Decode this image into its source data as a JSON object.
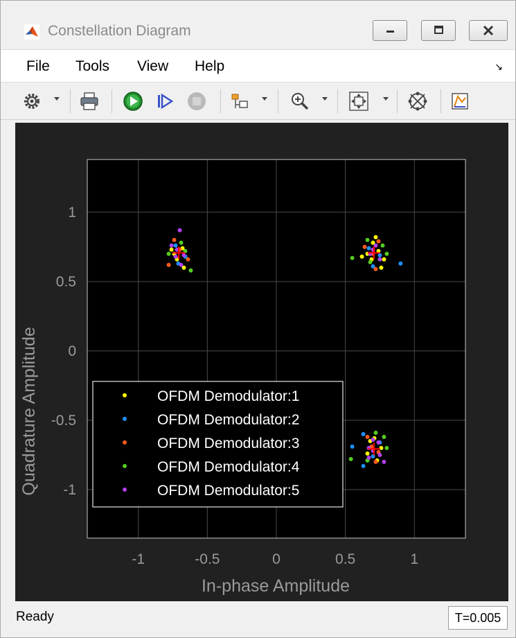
{
  "window": {
    "title": "Constellation Diagram"
  },
  "menu": [
    "File",
    "Tools",
    "View",
    "Help"
  ],
  "toolbar_icons": [
    "gear-icon",
    "print-icon",
    "run-icon",
    "step-forward-icon",
    "stop-icon",
    "signal-selector-icon",
    "zoom-icon",
    "autoscale-icon",
    "reference-constellation-icon",
    "measurements-icon"
  ],
  "status": {
    "text": "Ready",
    "time": "T=0.005"
  },
  "colors": {
    "plot_background": "#212121",
    "axes_background": "#000000",
    "reference_marker": "#ff0000",
    "series": [
      "#ffff00",
      "#1e90ff",
      "#ff5a1f",
      "#55cc22",
      "#b040f0"
    ]
  },
  "chart_data": {
    "type": "scatter",
    "title": "",
    "xlabel": "In-phase Amplitude",
    "ylabel": "Quadrature Amplitude",
    "xlim": [
      -1.37,
      1.37
    ],
    "ylim": [
      -1.35,
      1.38
    ],
    "x_ticks": [
      "-1",
      "-0.5",
      "0",
      "0.5",
      "1"
    ],
    "x_tick_values": [
      -1,
      -0.5,
      0,
      0.5,
      1
    ],
    "y_ticks": [
      "1",
      "0.5",
      "0",
      "-0.5",
      "-1"
    ],
    "y_tick_values": [
      1,
      0.5,
      0,
      -0.5,
      -1
    ],
    "grid": true,
    "legend_position": "bottom-left",
    "reference_points": [
      [
        -0.707,
        0.707
      ],
      [
        0.707,
        0.707
      ],
      [
        0.707,
        -0.707
      ]
    ],
    "series": [
      {
        "name": "OFDM Demodulator:1",
        "points": [
          [
            -0.74,
            0.7
          ],
          [
            -0.68,
            0.74
          ],
          [
            -0.72,
            0.66
          ],
          [
            -0.67,
            0.6
          ],
          [
            -0.76,
            0.73
          ],
          [
            0.7,
            0.78
          ],
          [
            0.74,
            0.72
          ],
          [
            0.66,
            0.7
          ],
          [
            0.78,
            0.66
          ],
          [
            0.72,
            0.82
          ],
          [
            0.62,
            0.68
          ],
          [
            0.76,
            0.6
          ],
          [
            0.69,
            0.66
          ],
          [
            0.71,
            -0.63
          ],
          [
            0.76,
            -0.7
          ],
          [
            0.66,
            -0.74
          ],
          [
            0.73,
            -0.79
          ],
          [
            0.68,
            -0.65
          ]
        ]
      },
      {
        "name": "OFDM Demodulator:2",
        "points": [
          [
            -0.71,
            0.63
          ],
          [
            -0.66,
            0.68
          ],
          [
            -0.73,
            0.76
          ],
          [
            0.9,
            0.63
          ],
          [
            0.67,
            0.74
          ],
          [
            0.75,
            0.69
          ],
          [
            0.7,
            0.61
          ],
          [
            0.63,
            -0.6
          ],
          [
            0.55,
            -0.69
          ],
          [
            0.63,
            -0.83
          ],
          [
            0.75,
            -0.66
          ],
          [
            0.7,
            -0.76
          ]
        ]
      },
      {
        "name": "OFDM Demodulator:3",
        "points": [
          [
            -0.74,
            0.8
          ],
          [
            -0.7,
            0.73
          ],
          [
            -0.64,
            0.66
          ],
          [
            -0.78,
            0.62
          ],
          [
            0.7,
            0.7
          ],
          [
            0.74,
            0.79
          ],
          [
            0.72,
            0.59
          ],
          [
            0.64,
            0.75
          ],
          [
            0.69,
            -0.69
          ],
          [
            0.74,
            -0.73
          ],
          [
            0.66,
            -0.62
          ],
          [
            0.72,
            -0.8
          ]
        ]
      },
      {
        "name": "OFDM Demodulator:4",
        "points": [
          [
            -0.62,
            0.58
          ],
          [
            -0.78,
            0.7
          ],
          [
            -0.69,
            0.78
          ],
          [
            -0.66,
            0.72
          ],
          [
            0.55,
            0.67
          ],
          [
            0.8,
            0.7
          ],
          [
            0.68,
            0.64
          ],
          [
            0.77,
            0.76
          ],
          [
            0.66,
            0.8
          ],
          [
            0.54,
            -0.78
          ],
          [
            0.78,
            -0.62
          ],
          [
            0.72,
            -0.59
          ],
          [
            0.66,
            -0.79
          ],
          [
            0.8,
            -0.7
          ]
        ]
      },
      {
        "name": "OFDM Demodulator:5",
        "points": [
          [
            -0.7,
            0.87
          ],
          [
            -0.72,
            0.73
          ],
          [
            -0.67,
            0.69
          ],
          [
            -0.76,
            0.76
          ],
          [
            -0.73,
            0.68
          ],
          [
            -0.69,
            0.62
          ],
          [
            0.72,
            0.76
          ],
          [
            0.68,
            0.7
          ],
          [
            0.75,
            0.66
          ],
          [
            0.7,
            0.73
          ],
          [
            0.7,
            -0.72
          ],
          [
            0.75,
            -0.75
          ],
          [
            0.67,
            -0.7
          ],
          [
            0.74,
            -0.66
          ],
          [
            0.78,
            -0.8
          ],
          [
            0.7,
            -0.64
          ],
          [
            0.67,
            -0.77
          ]
        ]
      }
    ]
  }
}
